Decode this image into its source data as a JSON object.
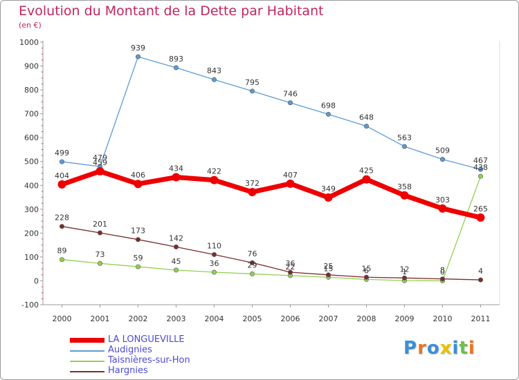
{
  "chart_data": {
    "type": "line",
    "title": "Evolution du Montant de la Dette par Habitant",
    "subtitle": "(en €)",
    "x": [
      "2000",
      "2001",
      "2002",
      "2003",
      "2004",
      "2005",
      "2006",
      "2007",
      "2008",
      "2009",
      "2010",
      "2011"
    ],
    "yticks": [
      "-100",
      "0",
      "100",
      "200",
      "300",
      "400",
      "500",
      "600",
      "700",
      "800",
      "900",
      "1000"
    ],
    "ylim": [
      -100,
      1000
    ],
    "grid": false,
    "legend_position": "bottom-left",
    "series": [
      {
        "name": "LA LONGUEVILLE",
        "color": "#ee0000",
        "values": [
          404,
          459,
          406,
          434,
          422,
          372,
          407,
          349,
          425,
          358,
          303,
          265
        ],
        "labels": [
          "404",
          "459",
          "406",
          "434",
          "422",
          "372",
          "407",
          "349",
          "425",
          "358",
          "303",
          "265"
        ]
      },
      {
        "name": "Audignies",
        "color": "#5b9bd5",
        "values": [
          499,
          479,
          939,
          893,
          843,
          795,
          746,
          698,
          648,
          563,
          509,
          467
        ],
        "labels": [
          "499",
          "479",
          "939",
          "893",
          "843",
          "795",
          "746",
          "698",
          "648",
          "563",
          "509",
          "467"
        ]
      },
      {
        "name": "Taisnières-sur-Hon",
        "color": "#92d050",
        "values": [
          89,
          73,
          59,
          45,
          36,
          29,
          22,
          15,
          6,
          1,
          0,
          438
        ],
        "labels": [
          "89",
          "73",
          "59",
          "45",
          "36",
          "29",
          "22",
          "15",
          "6",
          "1",
          "0",
          "438"
        ]
      },
      {
        "name": "Hargnies",
        "color": "#7b2c2c",
        "values": [
          228,
          201,
          173,
          142,
          110,
          76,
          36,
          25,
          15,
          12,
          8,
          4
        ],
        "labels": [
          "228",
          "201",
          "173",
          "142",
          "110",
          "76",
          "36",
          "25",
          "15",
          "12",
          "8",
          "4"
        ]
      }
    ]
  },
  "brand": {
    "text": "Proxiti",
    "letters": [
      "P",
      "r",
      "o",
      "x",
      "i",
      "t",
      "i"
    ],
    "colors": [
      "#3a8fd8",
      "#e87722",
      "#3a8fd8",
      "#e8c000",
      "#3a8fd8",
      "#6cc04a",
      "#e87722"
    ]
  }
}
